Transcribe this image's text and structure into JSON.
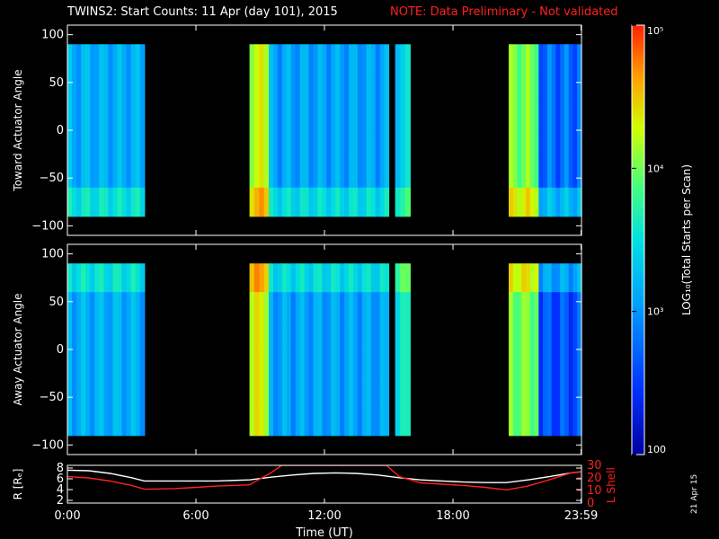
{
  "header": {
    "title": "TWINS2: Start Counts: 11 Apr (day 101), 2015",
    "note": "NOTE: Data Preliminary - Not validated"
  },
  "date_stamp": "21 Apr 15",
  "colors": {
    "background": "#000000",
    "note": "#ff2020",
    "l_shell_line": "#ff2020",
    "radius_line": "#ffffff"
  },
  "chart_data": [
    {
      "type": "heatmap",
      "panel": "top",
      "ylabel": "Toward Actuator Angle",
      "xlim": [
        0,
        24
      ],
      "ylim": [
        -110,
        110
      ],
      "yticks": [
        100,
        50,
        0,
        -50,
        -100
      ],
      "ytick_labels": [
        "100",
        "50",
        "0",
        "−50",
        "−100"
      ],
      "data_y_range": [
        -90,
        90
      ],
      "blocks": [
        {
          "t_start": 0.0,
          "t_end": 3.6,
          "level": 0.32
        },
        {
          "t_start": 8.5,
          "t_end": 9.4,
          "level": 0.7
        },
        {
          "t_start": 9.4,
          "t_end": 15.0,
          "level": 0.3
        },
        {
          "t_start": 15.3,
          "t_end": 16.0,
          "level": 0.4
        },
        {
          "t_start": 20.6,
          "t_end": 22.0,
          "level": 0.62
        },
        {
          "t_start": 22.0,
          "t_end": 24.0,
          "level": 0.22
        }
      ]
    },
    {
      "type": "heatmap",
      "panel": "middle",
      "ylabel": "Away Actuator Angle",
      "xlim": [
        0,
        24
      ],
      "ylim": [
        -110,
        110
      ],
      "yticks": [
        100,
        50,
        0,
        -50,
        -100
      ],
      "ytick_labels": [
        "100",
        "50",
        "0",
        "−50",
        "−100"
      ],
      "data_y_range": [
        -90,
        90
      ],
      "blocks": [
        {
          "t_start": 0.0,
          "t_end": 3.6,
          "level": 0.32
        },
        {
          "t_start": 8.5,
          "t_end": 9.4,
          "level": 0.72
        },
        {
          "t_start": 9.4,
          "t_end": 15.0,
          "level": 0.3
        },
        {
          "t_start": 15.3,
          "t_end": 16.0,
          "level": 0.45
        },
        {
          "t_start": 20.6,
          "t_end": 22.0,
          "level": 0.62
        },
        {
          "t_start": 22.0,
          "t_end": 24.0,
          "level": 0.18
        }
      ]
    },
    {
      "type": "line",
      "panel": "bottom",
      "ylabel": "R [Rₑ]",
      "ylabel_right": "L Shell",
      "xlabel": "Time (UT)",
      "xlim": [
        0,
        24
      ],
      "xticks": [
        0,
        6,
        12,
        18,
        23.98
      ],
      "xtick_labels": [
        "0:00",
        "6:00",
        "12:00",
        "18:00",
        "23:59"
      ],
      "ylim": [
        1.5,
        8.5
      ],
      "yticks": [
        2,
        4,
        6,
        8
      ],
      "ytick_labels": [
        "2",
        "4",
        "6",
        "8"
      ],
      "ylim_right": [
        0,
        30
      ],
      "yticks_right": [
        0,
        10,
        20,
        30
      ],
      "ytick_labels_right": [
        "0",
        "10",
        "20",
        "30"
      ],
      "series": [
        {
          "axis": "left",
          "color": "#ffffff",
          "x": [
            0,
            1,
            2,
            3,
            3.6,
            5,
            6,
            7,
            8.5,
            9.5,
            10.5,
            11.5,
            12.5,
            13.5,
            14.5,
            15.5,
            16.5,
            17.5,
            18.5,
            19.5,
            20.5,
            21.5,
            22.5,
            23.5,
            24
          ],
          "y": [
            7.6,
            7.5,
            7.0,
            6.2,
            5.6,
            5.6,
            5.6,
            5.6,
            5.8,
            6.3,
            6.7,
            7.0,
            7.1,
            7.0,
            6.7,
            6.2,
            5.8,
            5.6,
            5.4,
            5.3,
            5.3,
            5.8,
            6.4,
            7.1,
            7.3
          ]
        },
        {
          "axis": "right",
          "color": "#ff2020",
          "x": [
            0,
            1,
            2,
            3,
            3.6,
            5,
            6,
            7,
            8.5,
            9.5,
            10.0,
            14.9,
            15.5,
            16.5,
            17.5,
            18.5,
            19.5,
            20.5,
            21.5,
            22.5,
            23.5,
            24
          ],
          "y": [
            21,
            20,
            17.5,
            14,
            11,
            11.5,
            12.5,
            13.5,
            14.5,
            24,
            30,
            30,
            21,
            16,
            15,
            14,
            12.5,
            10.5,
            13.5,
            18.5,
            24,
            25
          ]
        }
      ]
    }
  ],
  "colorbar": {
    "label": "LOG₁₀(Total Starts per Scan)",
    "tick_labels": [
      "10⁵",
      "10⁴",
      "10³",
      "100"
    ],
    "tick_values": [
      100000,
      10000,
      1000,
      100
    ],
    "range": [
      100,
      100000
    ],
    "scale": "log",
    "colors": [
      "#0000a0",
      "#0030ff",
      "#00a0ff",
      "#00e0e0",
      "#40ff80",
      "#d0ff00",
      "#ffa000",
      "#ff2000"
    ]
  }
}
